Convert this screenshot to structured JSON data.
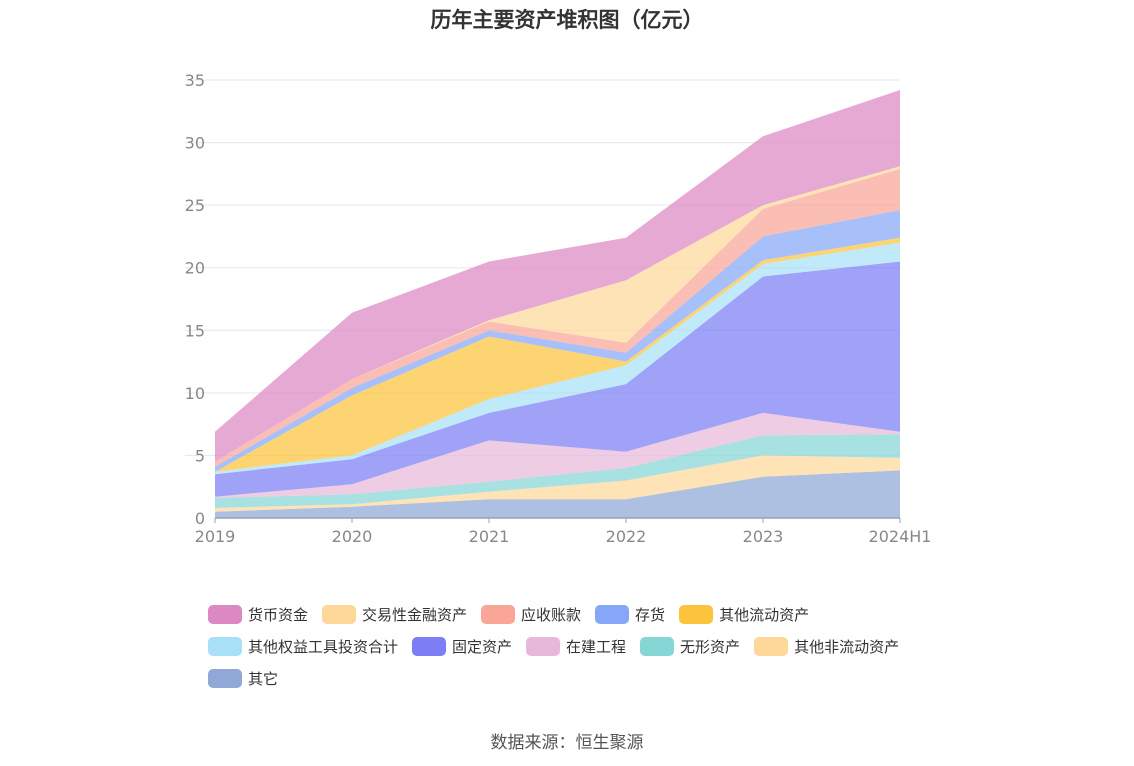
{
  "chart_data": {
    "type": "area",
    "stacked": true,
    "title": "历年主要资产堆积图（亿元）",
    "categories": [
      "2019",
      "2020",
      "2021",
      "2022",
      "2023",
      "2024H1"
    ],
    "ylim": [
      0,
      35
    ],
    "yticks": [
      0,
      5,
      10,
      15,
      20,
      25,
      30,
      35
    ],
    "grid": true,
    "legend_position": "bottom",
    "series": [
      {
        "name": "其它",
        "color": "#8fa8d6",
        "values": [
          0.5,
          0.9,
          1.5,
          1.5,
          3.3,
          3.8
        ]
      },
      {
        "name": "其他非流动资产",
        "color": "#fdd89a",
        "values": [
          0.3,
          0.2,
          0.6,
          1.5,
          1.7,
          1.0
        ]
      },
      {
        "name": "无形资产",
        "color": "#86d6d6",
        "values": [
          0.8,
          0.8,
          0.8,
          1.0,
          1.6,
          1.9
        ]
      },
      {
        "name": "在建工程",
        "color": "#e8b8da",
        "values": [
          0.1,
          0.8,
          3.3,
          1.3,
          1.8,
          0.2
        ]
      },
      {
        "name": "固定资产",
        "color": "#7b7ef5",
        "values": [
          1.8,
          2.0,
          2.2,
          5.4,
          10.9,
          13.6
        ]
      },
      {
        "name": "其他权益工具投资合计",
        "color": "#a8e0f8",
        "values": [
          0.2,
          0.3,
          1.1,
          1.5,
          1.0,
          1.5
        ]
      },
      {
        "name": "其他流动资产",
        "color": "#fbc43c",
        "values": [
          0.0,
          4.8,
          5.0,
          0.3,
          0.3,
          0.4
        ]
      },
      {
        "name": "存货",
        "color": "#86a7f8",
        "values": [
          0.4,
          0.6,
          0.5,
          0.7,
          1.9,
          2.2
        ]
      },
      {
        "name": "应收账款",
        "color": "#f9a597",
        "values": [
          0.4,
          0.7,
          0.7,
          0.8,
          2.2,
          3.3
        ]
      },
      {
        "name": "交易性金融资产",
        "color": "#fdd89a",
        "values": [
          0.0,
          0.0,
          0.1,
          5.0,
          0.3,
          0.2
        ]
      },
      {
        "name": "货币资金",
        "color": "#dc88c2",
        "values": [
          2.4,
          5.3,
          4.7,
          3.4,
          5.5,
          6.1
        ]
      }
    ],
    "legend_order": [
      "货币资金",
      "交易性金融资产",
      "应收账款",
      "存货",
      "其他流动资产",
      "其他权益工具投资合计",
      "固定资产",
      "在建工程",
      "无形资产",
      "其他非流动资产",
      "其它"
    ]
  },
  "source": "数据来源：恒生聚源"
}
